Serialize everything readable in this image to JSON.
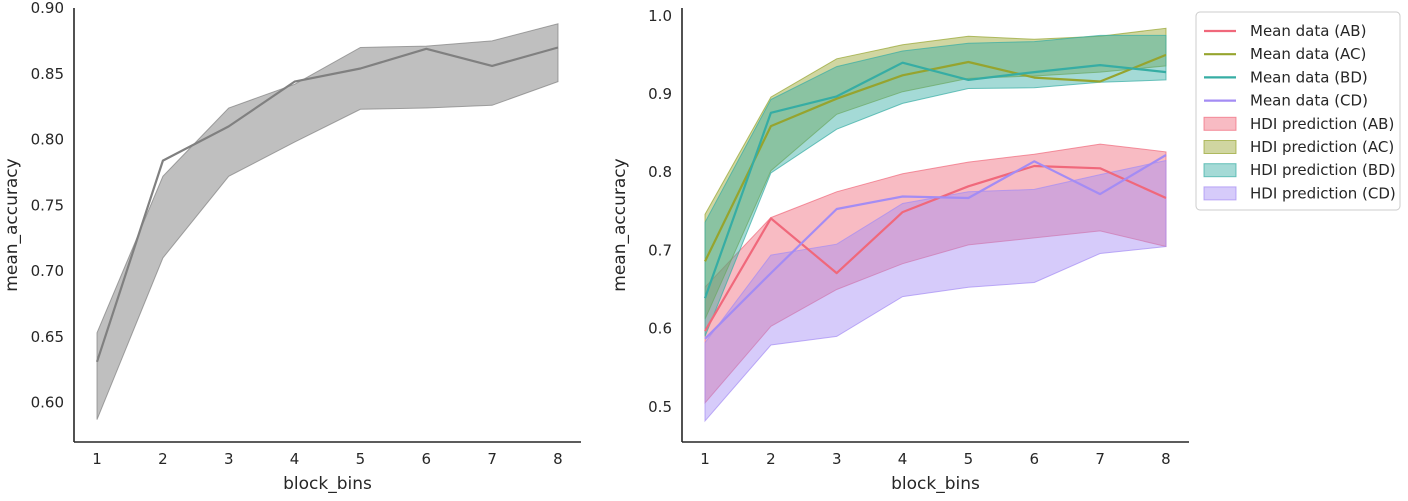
{
  "chart_data": [
    {
      "type": "line",
      "title": "",
      "xlabel": "block_bins",
      "ylabel": "mean_accuracy",
      "xlim": [
        0.65,
        8.35
      ],
      "ylim": [
        0.57,
        0.9
      ],
      "xticks": [
        1,
        2,
        3,
        4,
        5,
        6,
        7,
        8
      ],
      "yticks": [
        0.6,
        0.65,
        0.7,
        0.75,
        0.8,
        0.85,
        0.9
      ],
      "ytick_labels": [
        "0.60",
        "0.65",
        "0.70",
        "0.75",
        "0.80",
        "0.85",
        "0.90"
      ],
      "grid": false,
      "series": [
        {
          "color": "#808080",
          "x": [
            1,
            2,
            3,
            4,
            5,
            6,
            7,
            8
          ],
          "values": [
            0.631,
            0.784,
            0.81,
            0.844,
            0.854,
            0.869,
            0.856,
            0.87
          ],
          "band_low": [
            0.587,
            0.71,
            0.772,
            0.798,
            0.823,
            0.824,
            0.826,
            0.844
          ],
          "band_high": [
            0.653,
            0.772,
            0.824,
            0.842,
            0.87,
            0.871,
            0.875,
            0.888
          ],
          "band_color": "#808080"
        }
      ]
    },
    {
      "type": "line",
      "title": "",
      "xlabel": "block_bins",
      "ylabel": "mean_accuracy",
      "xlim": [
        0.65,
        8.35
      ],
      "ylim": [
        0.455,
        1.01
      ],
      "xticks": [
        1,
        2,
        3,
        4,
        5,
        6,
        7,
        8
      ],
      "yticks": [
        0.5,
        0.6,
        0.7,
        0.8,
        0.9,
        1.0
      ],
      "ytick_labels": [
        "0.5",
        "0.6",
        "0.7",
        "0.8",
        "0.9",
        "1.0"
      ],
      "grid": false,
      "legend": "outside-upper-right",
      "series": [
        {
          "name": "Mean data (AB)",
          "color": "#f0687b",
          "x": [
            1,
            2,
            3,
            4,
            5,
            6,
            7,
            8
          ],
          "values": [
            0.597,
            0.741,
            0.671,
            0.749,
            0.782,
            0.808,
            0.805,
            0.767
          ]
        },
        {
          "name": "Mean data (AC)",
          "color": "#96a42e",
          "x": [
            1,
            2,
            3,
            4,
            5,
            6,
            7,
            8
          ],
          "values": [
            0.686,
            0.859,
            0.894,
            0.924,
            0.941,
            0.921,
            0.916,
            0.95
          ]
        },
        {
          "name": "Mean data (BD)",
          "color": "#36ada4",
          "x": [
            1,
            2,
            3,
            4,
            5,
            6,
            7,
            8
          ],
          "values": [
            0.639,
            0.876,
            0.897,
            0.94,
            0.918,
            0.928,
            0.937,
            0.928
          ]
        },
        {
          "name": "Mean data (CD)",
          "color": "#a48cf4",
          "x": [
            1,
            2,
            3,
            4,
            5,
            6,
            7,
            8
          ],
          "values": [
            0.587,
            0.671,
            0.753,
            0.769,
            0.767,
            0.814,
            0.772,
            0.822
          ]
        }
      ],
      "bands": [
        {
          "name": "HDI prediction (AB)",
          "color": "#f0687b",
          "x": [
            1,
            2,
            3,
            4,
            5,
            6,
            7,
            8
          ],
          "low": [
            0.505,
            0.603,
            0.65,
            0.683,
            0.707,
            0.716,
            0.725,
            0.705
          ],
          "high": [
            0.653,
            0.742,
            0.775,
            0.798,
            0.813,
            0.823,
            0.836,
            0.826
          ]
        },
        {
          "name": "HDI prediction (AC)",
          "color": "#96a42e",
          "x": [
            1,
            2,
            3,
            4,
            5,
            6,
            7,
            8
          ],
          "low": [
            0.612,
            0.802,
            0.874,
            0.903,
            0.92,
            0.923,
            0.928,
            0.936
          ],
          "high": [
            0.746,
            0.896,
            0.945,
            0.963,
            0.974,
            0.97,
            0.974,
            0.984
          ]
        },
        {
          "name": "HDI prediction (BD)",
          "color": "#36ada4",
          "x": [
            1,
            2,
            3,
            4,
            5,
            6,
            7,
            8
          ],
          "low": [
            0.59,
            0.799,
            0.855,
            0.888,
            0.907,
            0.908,
            0.915,
            0.918
          ],
          "high": [
            0.736,
            0.893,
            0.935,
            0.955,
            0.965,
            0.967,
            0.975,
            0.975
          ]
        },
        {
          "name": "HDI prediction (CD)",
          "color": "#a48cf4",
          "x": [
            1,
            2,
            3,
            4,
            5,
            6,
            7,
            8
          ],
          "low": [
            0.482,
            0.579,
            0.59,
            0.641,
            0.653,
            0.659,
            0.696,
            0.705
          ],
          "high": [
            0.582,
            0.694,
            0.708,
            0.76,
            0.775,
            0.778,
            0.797,
            0.815
          ]
        }
      ]
    }
  ]
}
